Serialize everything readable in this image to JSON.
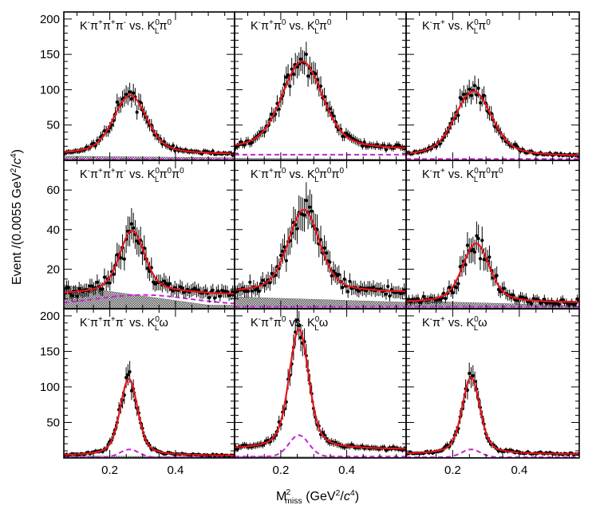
{
  "chart_data": {
    "type": "grid of histogram fits",
    "rows": 3,
    "cols": 3,
    "xlabel": {
      "main": "M",
      "sup": "2",
      "sub": "miss",
      "rest": " (GeV",
      "unit_sup": "2",
      "slash": "/",
      "c": "c",
      "c_sup": "4",
      "close": ")"
    },
    "ylabel": {
      "main": "Event /(0.0055 GeV",
      "sup": "2",
      "slash": "/",
      "c": "c",
      "c_sup": "4",
      "close": ")"
    },
    "xlim": [
      0.06,
      0.58
    ],
    "xticks": [
      0.2,
      0.4
    ],
    "xtick_labels": [
      "0.2",
      "0.4"
    ],
    "colors": {
      "fit": "#e8141c",
      "background": "#c822d8",
      "peaking": "#6e6e6e",
      "data": "#000000"
    },
    "row_settings": [
      {
        "ylim": [
          0,
          210
        ],
        "yticks": [
          50,
          100,
          150,
          200
        ],
        "ytick_labels": [
          "50",
          "100",
          "150",
          "200"
        ]
      },
      {
        "ylim": [
          0,
          75
        ],
        "yticks": [
          20,
          40,
          60
        ],
        "ytick_labels": [
          "20",
          "40",
          "60"
        ]
      },
      {
        "ylim": [
          0,
          210
        ],
        "yticks": [
          50,
          100,
          150,
          200
        ],
        "ytick_labels": [
          "50",
          "100",
          "150",
          "200"
        ]
      }
    ],
    "panels": [
      {
        "label": {
          "a": "K",
          "a_sup": "-",
          "b": "π",
          "b_sup": "+",
          "c": "π",
          "c_sup": "+",
          "d": "π",
          "d_sup": "-",
          "vs": " vs. K",
          "k_sup": "0",
          "k_sub": "L",
          "tail": "π",
          "tail_sup": "0"
        },
        "peak": 92,
        "mu": 0.262,
        "sigma": 0.048,
        "base": 8,
        "bkg": {
          "type": "flat",
          "level": 1.5
        },
        "shade": {
          "level": 6,
          "falloff": 0.4
        },
        "noise": 0.11,
        "seed": 11
      },
      {
        "label": {
          "a": "K",
          "a_sup": "-",
          "b": "π",
          "b_sup": "+",
          "c": "π",
          "c_sup": "0",
          "vs": " vs. K",
          "k_sup": "0",
          "k_sub": "L",
          "tail": "π",
          "tail_sup": "0"
        },
        "peak": 140,
        "mu": 0.265,
        "sigma": 0.058,
        "base": 14,
        "bkg": {
          "type": "flat",
          "level": 8
        },
        "shade": {
          "level": 3,
          "falloff": 0.5
        },
        "noise": 0.09,
        "seed": 23
      },
      {
        "label": {
          "a": "K",
          "a_sup": "-",
          "b": "π",
          "b_sup": "+",
          "vs": " vs. K",
          "k_sup": "0",
          "k_sub": "L",
          "tail": "π",
          "tail_sup": "0"
        },
        "peak": 98,
        "mu": 0.262,
        "sigma": 0.052,
        "base": 5,
        "bkg": {
          "type": "flat",
          "level": 2
        },
        "shade": {
          "level": 1,
          "falloff": 0.5
        },
        "noise": 0.1,
        "seed": 37
      },
      {
        "label": {
          "a": "K",
          "a_sup": "-",
          "b": "π",
          "b_sup": "+",
          "c": "π",
          "c_sup": "+",
          "d": "π",
          "d_sup": "-",
          "vs": " vs. K",
          "k_sup": "0",
          "k_sub": "L",
          "tail": "π",
          "tail_sup": "0",
          "tail2": "π",
          "tail2_sup": "0"
        },
        "peak": 38,
        "mu": 0.268,
        "sigma": 0.036,
        "base": 7,
        "bkg": {
          "type": "gauss",
          "peak": 7,
          "mu": 0.3,
          "sigma": 0.14,
          "level": 2
        },
        "shade": {
          "level": 12,
          "falloff": 1.0
        },
        "noise": 0.16,
        "seed": 41
      },
      {
        "label": {
          "a": "K",
          "a_sup": "-",
          "b": "π",
          "b_sup": "+",
          "c": "π",
          "c_sup": "0",
          "vs": " vs. K",
          "k_sup": "0",
          "k_sub": "L",
          "tail": "π",
          "tail_sup": "0",
          "tail2": "π",
          "tail2_sup": "0"
        },
        "peak": 50,
        "mu": 0.27,
        "sigma": 0.045,
        "base": 8,
        "bkg": {
          "type": "flat",
          "level": 1
        },
        "shade": {
          "level": 6,
          "falloff": 0.45
        },
        "noise": 0.15,
        "seed": 53
      },
      {
        "label": {
          "a": "K",
          "a_sup": "-",
          "b": "π",
          "b_sup": "+",
          "vs": " vs. K",
          "k_sup": "0",
          "k_sub": "L",
          "tail": "π",
          "tail_sup": "0",
          "tail2": "π",
          "tail2_sup": "0"
        },
        "peak": 33,
        "mu": 0.27,
        "sigma": 0.038,
        "base": 3,
        "bkg": {
          "type": "flat",
          "level": 1
        },
        "shade": {
          "level": 4,
          "falloff": 0.6
        },
        "noise": 0.2,
        "seed": 67
      },
      {
        "label": {
          "a": "K",
          "a_sup": "-",
          "b": "π",
          "b_sup": "+",
          "c": "π",
          "c_sup": "+",
          "d": "π",
          "d_sup": "-",
          "vs": " vs. K",
          "k_sup": "0",
          "k_sub": "L",
          "tail": "ω"
        },
        "peak": 108,
        "mu": 0.258,
        "sigma": 0.025,
        "base": 3,
        "bkg": {
          "type": "gauss",
          "peak": 12,
          "mu": 0.26,
          "sigma": 0.028,
          "level": 1
        },
        "shade": {
          "level": 3,
          "falloff": 0.6
        },
        "noise": 0.12,
        "seed": 71
      },
      {
        "label": {
          "a": "K",
          "a_sup": "-",
          "b": "π",
          "b_sup": "+",
          "c": "π",
          "c_sup": "0",
          "vs": " vs. K",
          "k_sup": "0",
          "k_sub": "L",
          "tail": "ω"
        },
        "peak": 172,
        "mu": 0.255,
        "sigma": 0.028,
        "base": 12,
        "bkg": {
          "type": "gauss",
          "peak": 32,
          "mu": 0.255,
          "sigma": 0.03,
          "level": 2
        },
        "shade": {
          "level": 2,
          "falloff": 0.6
        },
        "noise": 0.08,
        "seed": 83
      },
      {
        "label": {
          "a": "K",
          "a_sup": "-",
          "b": "π",
          "b_sup": "+",
          "vs": " vs. K",
          "k_sup": "0",
          "k_sub": "L",
          "tail": "ω"
        },
        "peak": 110,
        "mu": 0.255,
        "sigma": 0.025,
        "base": 5,
        "bkg": {
          "type": "gauss",
          "peak": 12,
          "mu": 0.255,
          "sigma": 0.028,
          "level": 1
        },
        "shade": {
          "level": 1,
          "falloff": 0.6
        },
        "noise": 0.1,
        "seed": 97
      }
    ]
  }
}
